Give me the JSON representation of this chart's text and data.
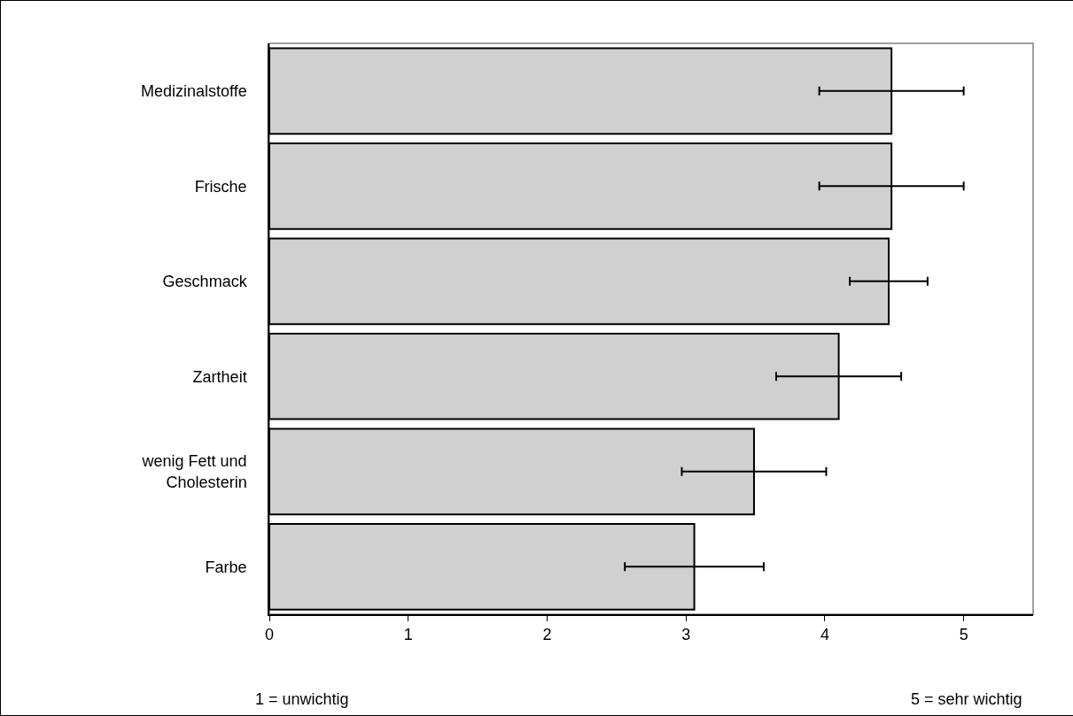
{
  "chart_data": {
    "type": "bar",
    "orientation": "horizontal",
    "categories": [
      "Medizinalstoffe",
      "Frische",
      "Geschmack",
      "Zartheit",
      "wenig Fett und\nCholesterin",
      "Farbe"
    ],
    "values": [
      4.48,
      4.48,
      4.46,
      4.1,
      3.49,
      3.06
    ],
    "errors": [
      0.52,
      0.52,
      0.28,
      0.45,
      0.52,
      0.5
    ],
    "color": "#d0d0d0",
    "xlim": [
      0,
      5.5
    ],
    "xticks": [
      0,
      1,
      2,
      3,
      4,
      5
    ],
    "grid": false,
    "annotations": [
      "1 = unwichtig",
      "5 = sehr wichtig"
    ]
  }
}
